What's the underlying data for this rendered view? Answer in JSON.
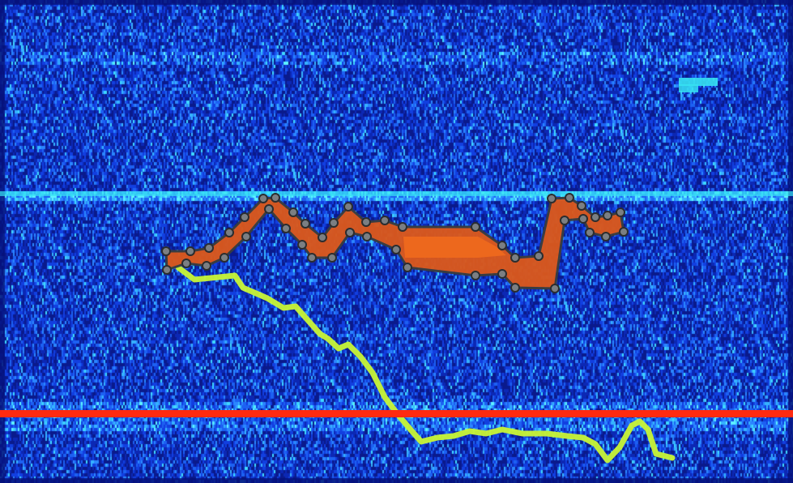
{
  "view": {
    "colors": {
      "background_dark": "#06127a",
      "background_mid": "#0f3cd9",
      "noise_bright": "#2aa6ff",
      "noise_cyan": "#36e2f2",
      "selection_fill": "#d9581d",
      "selection_core": "#f06a1e",
      "selection_stroke": "#3a3d3f",
      "handle_fill": "#7b7f83",
      "trace_color": "#c9f535",
      "marker_line": "#ff2a10"
    },
    "icons": {
      "handle": "vertex-handle-icon"
    },
    "noise_bands": [
      {
        "name": "upper-band",
        "level": 0.55
      },
      {
        "name": "mid-band",
        "level": 0.78
      },
      {
        "name": "lower-band",
        "level": 0.7
      }
    ]
  }
}
